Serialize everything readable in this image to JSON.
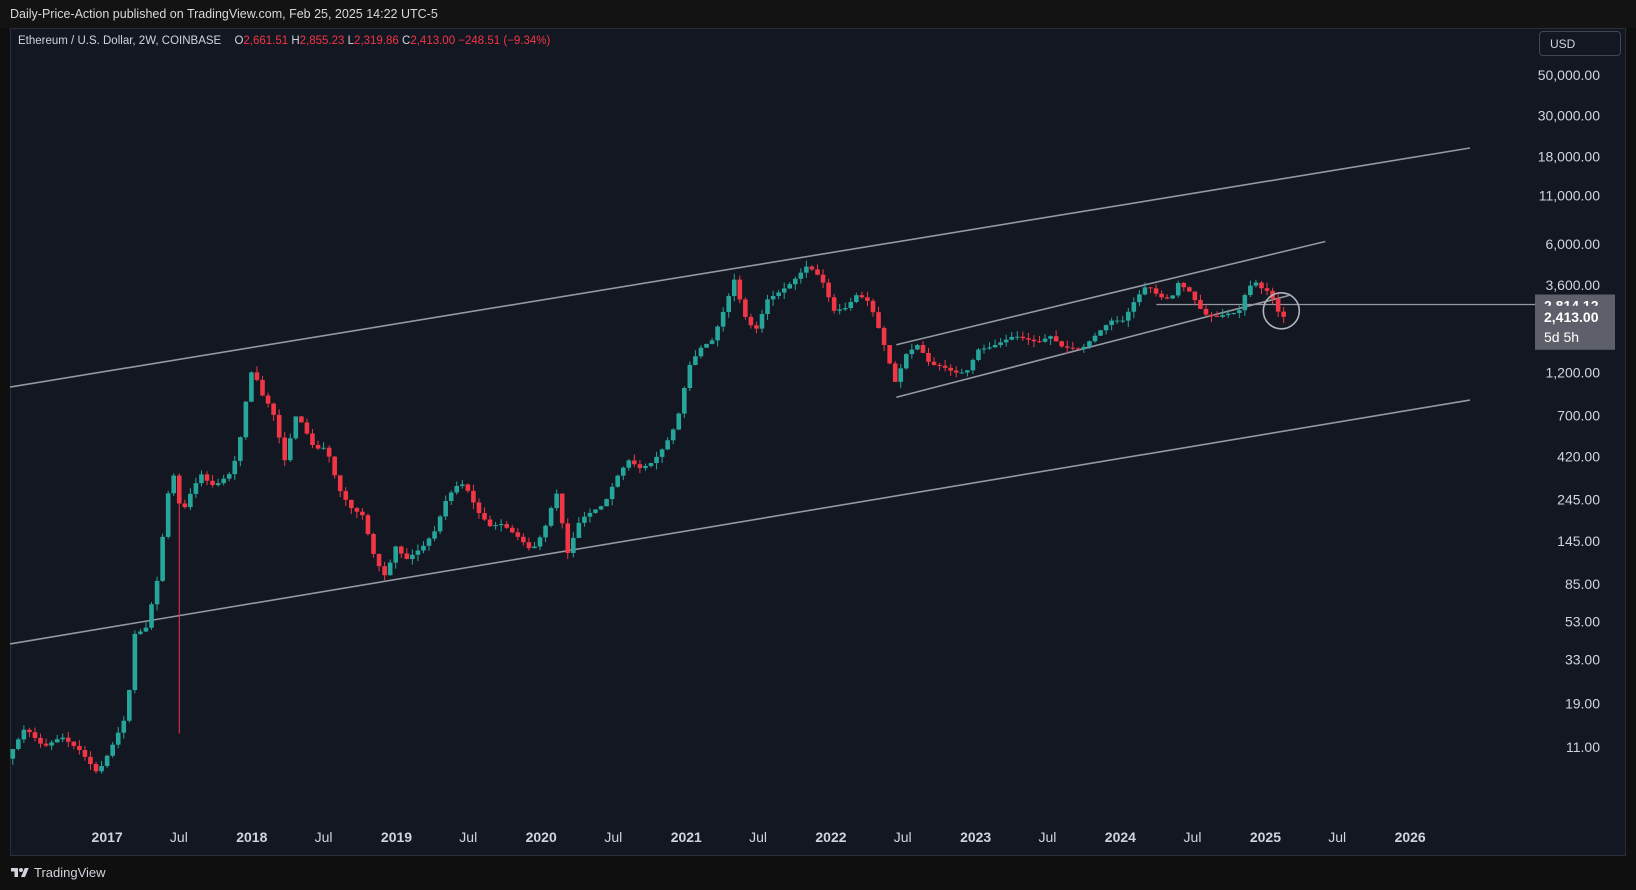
{
  "header": {
    "published_text": "Daily-Price-Action published on TradingView.com, Feb 25, 2025 14:22 UTC-5"
  },
  "legend": {
    "symbol": "Ethereum / U.S. Dollar, 2W, COINBASE",
    "open_label": "O",
    "open": "2,661.51",
    "high_label": "H",
    "high": "2,855.23",
    "low_label": "L",
    "low": "2,319.86",
    "close_label": "C",
    "close": "2,413.00",
    "change": "−248.51 (−9.34%)"
  },
  "currency_button": "USD",
  "footer": {
    "brand": "TradingView"
  },
  "colors": {
    "background": "#131722",
    "up": "#26a69a",
    "down": "#f23645",
    "channel": "#9598a1",
    "text": "#d1d4dc"
  },
  "chart_data": {
    "type": "candlestick",
    "symbol": "ETHUSD",
    "interval": "2W",
    "scale": "log",
    "x_range": [
      "2016-05-01",
      "2026-06-01"
    ],
    "y_range": [
      7,
      90000
    ],
    "y_ticks": [
      {
        "value": 50000,
        "label": "50,000.00"
      },
      {
        "value": 30000,
        "label": "30,000.00"
      },
      {
        "value": 18000,
        "label": "18,000.00"
      },
      {
        "value": 11000,
        "label": "11,000.00"
      },
      {
        "value": 6000,
        "label": "6,000.00"
      },
      {
        "value": 3600,
        "label": "3,600.00"
      },
      {
        "value": 1200,
        "label": "1,200.00"
      },
      {
        "value": 700,
        "label": "700.00"
      },
      {
        "value": 420,
        "label": "420.00"
      },
      {
        "value": 245,
        "label": "245.00"
      },
      {
        "value": 145,
        "label": "145.00"
      },
      {
        "value": 85,
        "label": "85.00"
      },
      {
        "value": 53,
        "label": "53.00"
      },
      {
        "value": 33,
        "label": "33.00"
      },
      {
        "value": 19,
        "label": "19.00"
      },
      {
        "value": 11,
        "label": "11.00"
      }
    ],
    "x_ticks": [
      {
        "date": "2017-01-01",
        "label": "2017",
        "bold": true
      },
      {
        "date": "2017-07-01",
        "label": "Jul",
        "bold": false
      },
      {
        "date": "2018-01-01",
        "label": "2018",
        "bold": true
      },
      {
        "date": "2018-07-01",
        "label": "Jul",
        "bold": false
      },
      {
        "date": "2019-01-01",
        "label": "2019",
        "bold": true
      },
      {
        "date": "2019-07-01",
        "label": "Jul",
        "bold": false
      },
      {
        "date": "2020-01-01",
        "label": "2020",
        "bold": true
      },
      {
        "date": "2020-07-01",
        "label": "Jul",
        "bold": false
      },
      {
        "date": "2021-01-01",
        "label": "2021",
        "bold": true
      },
      {
        "date": "2021-07-01",
        "label": "Jul",
        "bold": false
      },
      {
        "date": "2022-01-01",
        "label": "2022",
        "bold": true
      },
      {
        "date": "2022-07-01",
        "label": "Jul",
        "bold": false
      },
      {
        "date": "2023-01-01",
        "label": "2023",
        "bold": true
      },
      {
        "date": "2023-07-01",
        "label": "Jul",
        "bold": false
      },
      {
        "date": "2024-01-01",
        "label": "2024",
        "bold": true
      },
      {
        "date": "2024-07-01",
        "label": "Jul",
        "bold": false
      },
      {
        "date": "2025-01-01",
        "label": "2025",
        "bold": true
      },
      {
        "date": "2025-07-01",
        "label": "Jul",
        "bold": false
      },
      {
        "date": "2026-01-01",
        "label": "2026",
        "bold": true
      }
    ],
    "price_markers": [
      {
        "value": 2814.12,
        "label": "2,814.12",
        "style": "gray"
      },
      {
        "value": 2413.0,
        "label": "2,413.00",
        "sublabel": "5d 5h",
        "style": "last"
      }
    ],
    "horizontal_line": {
      "value": 2814.12,
      "from": "2024-04-01",
      "to": "2026-06-01"
    },
    "circle_annotation": {
      "date": "2025-02-10",
      "value": 2600
    },
    "trendlines": [
      {
        "name": "outer-upper",
        "p1": {
          "date": "2016-05-01",
          "value": 1000
        },
        "p2": {
          "date": "2026-06-01",
          "value": 20000
        }
      },
      {
        "name": "outer-lower",
        "p1": {
          "date": "2016-05-01",
          "value": 40
        },
        "p2": {
          "date": "2026-06-01",
          "value": 850
        }
      },
      {
        "name": "inner-upper",
        "p1": {
          "date": "2022-06-15",
          "value": 1700
        },
        "p2": {
          "date": "2025-06-01",
          "value": 6200
        }
      },
      {
        "name": "inner-lower",
        "p1": {
          "date": "2022-06-15",
          "value": 880
        },
        "p2": {
          "date": "2025-03-01",
          "value": 3150
        }
      }
    ],
    "anchors": [
      [
        "2016-05-01",
        9.5
      ],
      [
        "2016-06-15",
        14
      ],
      [
        "2016-08-01",
        11
      ],
      [
        "2016-09-15",
        12.5
      ],
      [
        "2016-11-01",
        10.5
      ],
      [
        "2016-12-15",
        7.9
      ],
      [
        "2017-01-15",
        10.5
      ],
      [
        "2017-03-01",
        17
      ],
      [
        "2017-03-15",
        45
      ],
      [
        "2017-04-15",
        48
      ],
      [
        "2017-05-15",
        90
      ],
      [
        "2017-06-10",
        260
      ],
      [
        "2017-06-25",
        330
      ],
      [
        "2017-07-15",
        200
      ],
      [
        "2017-08-01",
        250
      ],
      [
        "2017-08-20",
        300
      ],
      [
        "2017-09-05",
        340
      ],
      [
        "2017-09-25",
        290
      ],
      [
        "2017-10-15",
        300
      ],
      [
        "2017-11-15",
        340
      ],
      [
        "2017-12-05",
        450
      ],
      [
        "2017-12-20",
        750
      ],
      [
        "2018-01-10",
        1300
      ],
      [
        "2018-02-01",
        920
      ],
      [
        "2018-03-01",
        750
      ],
      [
        "2018-04-01",
        400
      ],
      [
        "2018-05-01",
        720
      ],
      [
        "2018-05-20",
        600
      ],
      [
        "2018-06-15",
        460
      ],
      [
        "2018-07-15",
        470
      ],
      [
        "2018-08-15",
        280
      ],
      [
        "2018-09-15",
        220
      ],
      [
        "2018-10-15",
        200
      ],
      [
        "2018-11-15",
        115
      ],
      [
        "2018-12-15",
        90
      ],
      [
        "2019-01-01",
        140
      ],
      [
        "2019-02-01",
        115
      ],
      [
        "2019-03-15",
        135
      ],
      [
        "2019-04-15",
        165
      ],
      [
        "2019-05-15",
        250
      ],
      [
        "2019-06-15",
        300
      ],
      [
        "2019-07-01",
        290
      ],
      [
        "2019-08-01",
        210
      ],
      [
        "2019-09-01",
        175
      ],
      [
        "2019-10-01",
        180
      ],
      [
        "2019-11-15",
        150
      ],
      [
        "2019-12-15",
        128
      ],
      [
        "2020-01-15",
        165
      ],
      [
        "2020-02-15",
        270
      ],
      [
        "2020-03-15",
        125
      ],
      [
        "2020-04-15",
        190
      ],
      [
        "2020-05-15",
        210
      ],
      [
        "2020-06-15",
        230
      ],
      [
        "2020-07-15",
        320
      ],
      [
        "2020-08-15",
        400
      ],
      [
        "2020-09-15",
        360
      ],
      [
        "2020-10-15",
        390
      ],
      [
        "2020-11-15",
        480
      ],
      [
        "2020-12-15",
        640
      ],
      [
        "2021-01-15",
        1300
      ],
      [
        "2021-02-15",
        1650
      ],
      [
        "2021-03-15",
        1800
      ],
      [
        "2021-04-15",
        2700
      ],
      [
        "2021-05-10",
        3900
      ],
      [
        "2021-06-01",
        2500
      ],
      [
        "2021-07-01",
        2000
      ],
      [
        "2021-08-01",
        3000
      ],
      [
        "2021-09-01",
        3300
      ],
      [
        "2021-10-01",
        3700
      ],
      [
        "2021-11-10",
        4600
      ],
      [
        "2021-12-15",
        3900
      ],
      [
        "2022-01-15",
        2600
      ],
      [
        "2022-02-15",
        2700
      ],
      [
        "2022-03-15",
        3200
      ],
      [
        "2022-04-15",
        2900
      ],
      [
        "2022-05-15",
        1900
      ],
      [
        "2022-06-20",
        1050
      ],
      [
        "2022-07-15",
        1500
      ],
      [
        "2022-08-15",
        1700
      ],
      [
        "2022-09-15",
        1330
      ],
      [
        "2022-10-15",
        1300
      ],
      [
        "2022-11-15",
        1200
      ],
      [
        "2022-12-15",
        1200
      ],
      [
        "2023-01-15",
        1600
      ],
      [
        "2023-02-15",
        1650
      ],
      [
        "2023-04-15",
        1900
      ],
      [
        "2023-06-15",
        1750
      ],
      [
        "2023-07-15",
        1900
      ],
      [
        "2023-08-15",
        1650
      ],
      [
        "2023-10-01",
        1600
      ],
      [
        "2023-11-15",
        2000
      ],
      [
        "2023-12-15",
        2300
      ],
      [
        "2024-01-15",
        2300
      ],
      [
        "2024-02-15",
        3000
      ],
      [
        "2024-03-15",
        3600
      ],
      [
        "2024-04-15",
        3100
      ],
      [
        "2024-05-15",
        3000
      ],
      [
        "2024-06-01",
        3700
      ],
      [
        "2024-07-01",
        3300
      ],
      [
        "2024-08-05",
        2500
      ],
      [
        "2024-09-05",
        2400
      ],
      [
        "2024-10-01",
        2500
      ],
      [
        "2024-11-01",
        2550
      ],
      [
        "2024-11-20",
        3300
      ],
      [
        "2024-12-10",
        3800
      ],
      [
        "2025-01-01",
        3400
      ],
      [
        "2025-01-20",
        3300
      ],
      [
        "2025-02-03",
        2700
      ],
      [
        "2025-02-17",
        2413
      ]
    ]
  }
}
